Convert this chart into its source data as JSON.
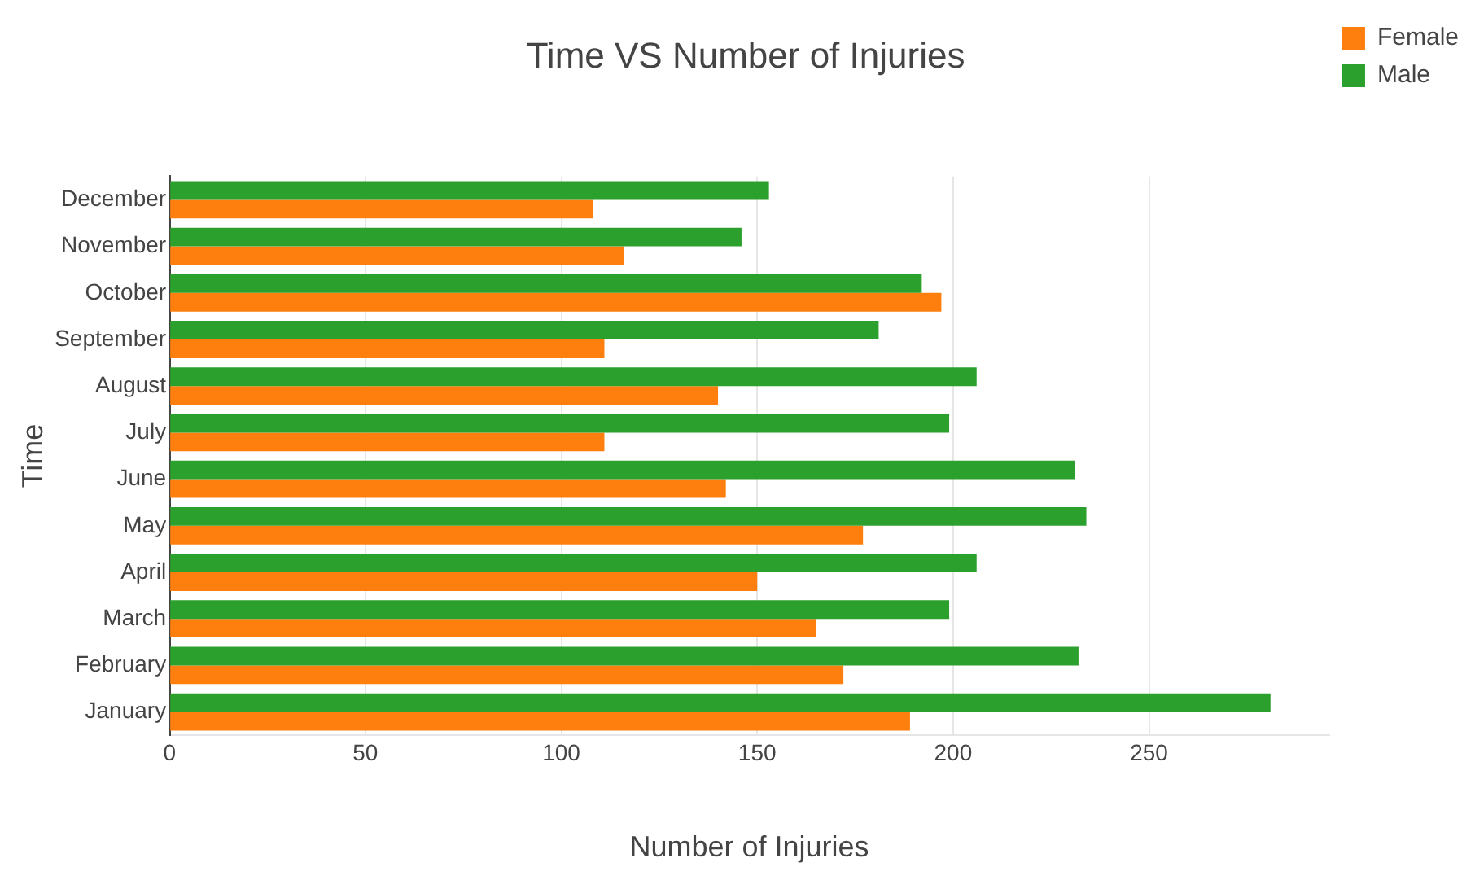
{
  "chart_data": {
    "type": "bar",
    "orientation": "horizontal",
    "title": "Time VS Number of Injuries",
    "xlabel": "Number of Injuries",
    "ylabel": "Time",
    "categories": [
      "December",
      "November",
      "October",
      "September",
      "August",
      "July",
      "June",
      "May",
      "April",
      "March",
      "February",
      "January"
    ],
    "series": [
      {
        "name": "Female",
        "color": "#ff7f0e",
        "values": [
          108,
          116,
          197,
          111,
          140,
          111,
          142,
          177,
          150,
          165,
          172,
          189
        ]
      },
      {
        "name": "Male",
        "color": "#2ca02c",
        "values": [
          153,
          146,
          192,
          181,
          206,
          199,
          231,
          234,
          206,
          199,
          232,
          281
        ]
      }
    ],
    "xlim": [
      0,
      296
    ],
    "xticks": [
      0,
      50,
      100,
      150,
      200,
      250
    ],
    "grid": "x",
    "legend": "top right"
  }
}
